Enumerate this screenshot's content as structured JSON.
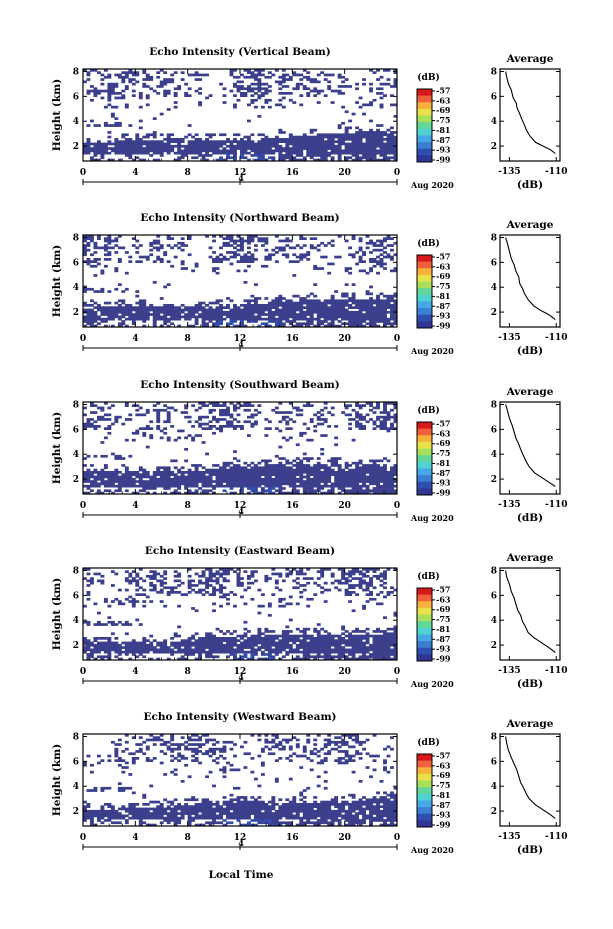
{
  "figure": {
    "xlabel": "Local Time",
    "colormap": [
      "#313695",
      "#2f4fb0",
      "#3a7fd0",
      "#46a8e6",
      "#4fd2d2",
      "#63d79a",
      "#a8e05a",
      "#e8e14a",
      "#f8b23c",
      "#f0603a",
      "#d7191c"
    ],
    "fill_color": "#3b3f8c"
  },
  "chart_data": [
    {
      "type": "heatmap",
      "title": "Echo Intensity (Vertical Beam)",
      "ylabel": "Height (km)",
      "x_ticks": [
        "0",
        "4",
        "8",
        "12",
        "16",
        "20",
        "0"
      ],
      "y_ticks": [
        "2",
        "4",
        "6",
        "8"
      ],
      "date_tick": "4",
      "date_label": "Aug 2020",
      "colorbar": {
        "unit": "(dB)",
        "ticks": [
          "-57",
          "-63",
          "-69",
          "-75",
          "-81",
          "-87",
          "-93",
          "-99"
        ]
      },
      "profile": {
        "type": "line",
        "title": "Average",
        "xlabel": "(dB)",
        "x_ticks": [
          "-135",
          "-110"
        ],
        "xlim": [
          -140,
          -108
        ],
        "y_ticks": [
          "2",
          "4",
          "6",
          "8"
        ],
        "ylim": [
          0.8,
          8.2
        ],
        "x": [
          -110.5,
          -113,
          -117,
          -121,
          -124,
          -126,
          -127,
          -128.5,
          -129.5,
          -131,
          -131.2,
          -133,
          -134,
          -135.5,
          -136.5,
          -137
        ],
        "y": [
          1.4,
          1.7,
          2.0,
          2.3,
          2.8,
          3.3,
          3.7,
          4.2,
          4.6,
          5.1,
          5.4,
          5.9,
          6.5,
          7.0,
          7.6,
          8.0
        ]
      }
    },
    {
      "type": "heatmap",
      "title": "Echo Intensity (Northward Beam)",
      "ylabel": "Height (km)",
      "x_ticks": [
        "0",
        "4",
        "8",
        "12",
        "16",
        "20",
        "0"
      ],
      "y_ticks": [
        "2",
        "4",
        "6",
        "8"
      ],
      "date_tick": "4",
      "date_label": "Aug 2020",
      "colorbar": {
        "unit": "(dB)",
        "ticks": [
          "-57",
          "-63",
          "-69",
          "-75",
          "-81",
          "-87",
          "-93",
          "-99"
        ]
      },
      "profile": {
        "type": "line",
        "title": "Average",
        "xlabel": "(dB)",
        "x_ticks": [
          "-135",
          "-110"
        ],
        "xlim": [
          -140,
          -108
        ],
        "y_ticks": [
          "2",
          "4",
          "6",
          "8"
        ],
        "ylim": [
          0.8,
          8.2
        ],
        "x": [
          -110.5,
          -114,
          -118,
          -122,
          -125,
          -127,
          -128,
          -129.5,
          -130,
          -131.5,
          -132.5,
          -134,
          -135,
          -136,
          -137
        ],
        "y": [
          1.4,
          1.8,
          2.1,
          2.5,
          3.0,
          3.5,
          3.9,
          4.3,
          4.8,
          5.3,
          5.8,
          6.3,
          6.9,
          7.5,
          8.0
        ]
      }
    },
    {
      "type": "heatmap",
      "title": "Echo Intensity (Southward Beam)",
      "ylabel": "Height (km)",
      "x_ticks": [
        "0",
        "4",
        "8",
        "12",
        "16",
        "20",
        "0"
      ],
      "y_ticks": [
        "2",
        "4",
        "6",
        "8"
      ],
      "date_tick": "4",
      "date_label": "Aug 2020",
      "colorbar": {
        "unit": "(dB)",
        "ticks": [
          "-57",
          "-63",
          "-69",
          "-75",
          "-81",
          "-87",
          "-93",
          "-99"
        ]
      },
      "profile": {
        "type": "line",
        "title": "Average",
        "xlabel": "(dB)",
        "x_ticks": [
          "-135",
          "-110"
        ],
        "xlim": [
          -140,
          -108
        ],
        "y_ticks": [
          "2",
          "4",
          "6",
          "8"
        ],
        "ylim": [
          0.8,
          8.2
        ],
        "x": [
          -110.5,
          -113.5,
          -117.5,
          -121.5,
          -124.5,
          -126,
          -127.5,
          -129,
          -130,
          -131.5,
          -132.5,
          -133.5,
          -135,
          -136,
          -137
        ],
        "y": [
          1.4,
          1.7,
          2.1,
          2.5,
          3.0,
          3.4,
          3.9,
          4.4,
          4.8,
          5.3,
          5.8,
          6.3,
          6.9,
          7.5,
          8.0
        ]
      }
    },
    {
      "type": "heatmap",
      "title": "Echo Intensity (Eastward Beam)",
      "ylabel": "Height (km)",
      "x_ticks": [
        "0",
        "4",
        "8",
        "12",
        "16",
        "20",
        "0"
      ],
      "y_ticks": [
        "2",
        "4",
        "6",
        "8"
      ],
      "date_tick": "4",
      "date_label": "Aug 2020",
      "colorbar": {
        "unit": "(dB)",
        "ticks": [
          "-57",
          "-63",
          "-69",
          "-75",
          "-81",
          "-87",
          "-93",
          "-99"
        ]
      },
      "profile": {
        "type": "line",
        "title": "Average",
        "xlabel": "(dB)",
        "x_ticks": [
          "-135",
          "-110"
        ],
        "xlim": [
          -140,
          -108
        ],
        "y_ticks": [
          "2",
          "4",
          "6",
          "8"
        ],
        "ylim": [
          0.8,
          8.2
        ],
        "x": [
          -110.5,
          -114,
          -118,
          -122,
          -125,
          -126.5,
          -128,
          -129,
          -130.5,
          -131.5,
          -132.5,
          -134,
          -135,
          -136.5,
          -137
        ],
        "y": [
          1.4,
          1.8,
          2.2,
          2.6,
          3.0,
          3.5,
          3.9,
          4.4,
          4.8,
          5.3,
          5.8,
          6.3,
          6.9,
          7.5,
          8.0
        ]
      }
    },
    {
      "type": "heatmap",
      "title": "Echo Intensity (Westward Beam)",
      "ylabel": "Height (km)",
      "x_ticks": [
        "0",
        "4",
        "8",
        "12",
        "16",
        "20",
        "0"
      ],
      "y_ticks": [
        "2",
        "4",
        "6",
        "8"
      ],
      "date_tick": "4",
      "date_label": "Aug 2020",
      "colorbar": {
        "unit": "(dB)",
        "ticks": [
          "-57",
          "-63",
          "-69",
          "-75",
          "-81",
          "-87",
          "-93",
          "-99"
        ]
      },
      "profile": {
        "type": "line",
        "title": "Average",
        "xlabel": "(dB)",
        "x_ticks": [
          "-135",
          "-110"
        ],
        "xlim": [
          -140,
          -108
        ],
        "y_ticks": [
          "2",
          "4",
          "6",
          "8"
        ],
        "ylim": [
          0.8,
          8.2
        ],
        "x": [
          -110.5,
          -113,
          -117,
          -121,
          -124.5,
          -126,
          -127.5,
          -129,
          -130,
          -131,
          -132.5,
          -134,
          -135.5,
          -136.5,
          -137
        ],
        "y": [
          1.4,
          1.7,
          2.1,
          2.5,
          3.0,
          3.4,
          3.9,
          4.3,
          4.8,
          5.3,
          5.8,
          6.3,
          6.9,
          7.5,
          8.0
        ]
      }
    }
  ]
}
